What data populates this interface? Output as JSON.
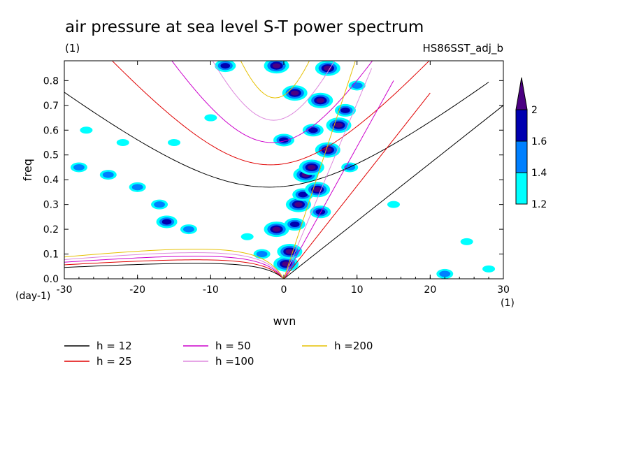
{
  "chart_data": {
    "type": "heatmap",
    "title": "air pressure at sea level S-T power spectrum",
    "subtitle_left": "(1)",
    "subtitle_right": "HS86SST_adj_b",
    "xlabel": "wvn",
    "ylabel": "freq",
    "x_unit": "(1)",
    "y_unit": "(day-1)",
    "xlim": [
      -30,
      30
    ],
    "ylim": [
      0,
      0.88
    ],
    "x_ticks": [
      "-30",
      "-20",
      "-10",
      "0",
      "10",
      "20",
      "30"
    ],
    "y_ticks": [
      "0.0",
      "0.1",
      "0.2",
      "0.3",
      "0.4",
      "0.5",
      "0.6",
      "0.7",
      "0.8"
    ],
    "colorbar": {
      "levels": [
        "1.2",
        "1.4",
        "1.6",
        "2"
      ],
      "colors": [
        "#00ffff",
        "#0080ff",
        "#0000b0",
        "#4b0082"
      ]
    },
    "dispersion_curves": [
      {
        "label": "h = 12",
        "color": "#000000"
      },
      {
        "label": "h = 25",
        "color": "#e00000"
      },
      {
        "label": "h = 50",
        "color": "#cc00cc"
      },
      {
        "label": "h =100",
        "color": "#dd88dd"
      },
      {
        "label": "h =200",
        "color": "#e6c000"
      }
    ],
    "blobs": [
      {
        "x": 0.3,
        "y": 0.06,
        "level": 4
      },
      {
        "x": 0.8,
        "y": 0.11,
        "level": 4
      },
      {
        "x": -1.0,
        "y": 0.2,
        "level": 4
      },
      {
        "x": 1.5,
        "y": 0.22,
        "level": 3
      },
      {
        "x": 2.0,
        "y": 0.3,
        "level": 4
      },
      {
        "x": 2.6,
        "y": 0.34,
        "level": 3
      },
      {
        "x": 3.0,
        "y": 0.42,
        "level": 4
      },
      {
        "x": 3.8,
        "y": 0.45,
        "level": 4
      },
      {
        "x": 4.6,
        "y": 0.36,
        "level": 4
      },
      {
        "x": 5.0,
        "y": 0.27,
        "level": 3
      },
      {
        "x": 6.0,
        "y": 0.52,
        "level": 4
      },
      {
        "x": 7.5,
        "y": 0.62,
        "level": 4
      },
      {
        "x": 8.4,
        "y": 0.68,
        "level": 3
      },
      {
        "x": 1.5,
        "y": 0.75,
        "level": 4
      },
      {
        "x": 5.0,
        "y": 0.72,
        "level": 4
      },
      {
        "x": 0.0,
        "y": 0.56,
        "level": 3
      },
      {
        "x": -1.0,
        "y": 0.86,
        "level": 4
      },
      {
        "x": 6.0,
        "y": 0.85,
        "level": 4
      },
      {
        "x": -8.0,
        "y": 0.86,
        "level": 3
      },
      {
        "x": 10.0,
        "y": 0.78,
        "level": 2
      },
      {
        "x": -16.0,
        "y": 0.23,
        "level": 3
      },
      {
        "x": -17.0,
        "y": 0.3,
        "level": 2
      },
      {
        "x": -20.0,
        "y": 0.37,
        "level": 2
      },
      {
        "x": -24.0,
        "y": 0.42,
        "level": 2
      },
      {
        "x": -28.0,
        "y": 0.45,
        "level": 2
      },
      {
        "x": -13.0,
        "y": 0.2,
        "level": 2
      },
      {
        "x": -27.0,
        "y": 0.6,
        "level": 1
      },
      {
        "x": -15.0,
        "y": 0.55,
        "level": 1
      },
      {
        "x": 22.0,
        "y": 0.02,
        "level": 2
      },
      {
        "x": 28.0,
        "y": 0.04,
        "level": 1
      },
      {
        "x": -22.0,
        "y": 0.55,
        "level": 1
      },
      {
        "x": -10.0,
        "y": 0.65,
        "level": 1
      },
      {
        "x": 15.0,
        "y": 0.3,
        "level": 1
      },
      {
        "x": 25.0,
        "y": 0.15,
        "level": 1
      },
      {
        "x": 9.0,
        "y": 0.45,
        "level": 2
      },
      {
        "x": 4.0,
        "y": 0.6,
        "level": 3
      },
      {
        "x": -3.0,
        "y": 0.1,
        "level": 2
      },
      {
        "x": -5.0,
        "y": 0.17,
        "level": 1
      }
    ]
  }
}
